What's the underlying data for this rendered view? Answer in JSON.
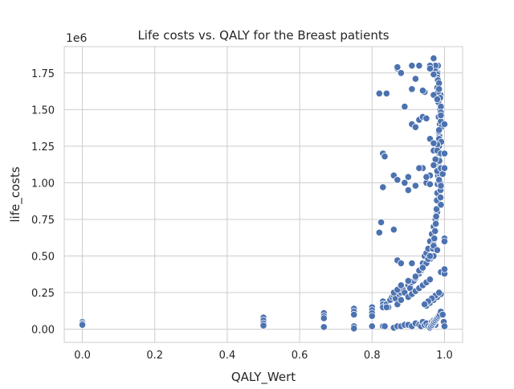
{
  "chart_data": {
    "type": "scatter",
    "title": "Life costs vs. QALY for the Breast patients",
    "xlabel": "QALY_Wert",
    "ylabel": "life_costs",
    "y_offset_label": "1e6",
    "xlim": [
      -0.05,
      1.05
    ],
    "ylim": [
      -0.09,
      1.93
    ],
    "xticks": [
      0.0,
      0.2,
      0.4,
      0.6,
      0.8,
      1.0
    ],
    "xtick_labels": [
      "0.0",
      "0.2",
      "0.4",
      "0.6",
      "0.8",
      "1.0"
    ],
    "yticks": [
      0.0,
      0.25,
      0.5,
      0.75,
      1.0,
      1.25,
      1.5,
      1.75
    ],
    "ytick_labels": [
      "0.00",
      "0.25",
      "0.50",
      "0.75",
      "1.00",
      "1.25",
      "1.50",
      "1.75"
    ],
    "grid": true,
    "marker_color": "#4c72b0",
    "marker_edge": "#ffffff",
    "series": [
      {
        "x": [
          0.0,
          0.0,
          0.0,
          0.5,
          0.5,
          0.5,
          0.5,
          0.667,
          0.667,
          0.667,
          0.667,
          0.75,
          0.75,
          0.75,
          0.75,
          0.75,
          0.8,
          0.8,
          0.8,
          0.8,
          0.8,
          0.83,
          0.83,
          0.83,
          0.83,
          0.835,
          0.84,
          0.845,
          0.85,
          0.855,
          0.86,
          0.865,
          0.87,
          0.875,
          0.88,
          0.885,
          0.89,
          0.895,
          0.9,
          0.905,
          0.91,
          0.915,
          0.92,
          0.925,
          0.93,
          0.935,
          0.94,
          0.945,
          0.95,
          0.955,
          0.96,
          0.965,
          0.97,
          0.975,
          0.98,
          0.985,
          0.99,
          0.86,
          0.87,
          0.88,
          0.89,
          0.9,
          0.91,
          0.92,
          0.93,
          0.935,
          0.94,
          0.945,
          0.95,
          0.955,
          0.96,
          0.965,
          0.97,
          0.975,
          0.962,
          0.965,
          0.968,
          0.97,
          0.972,
          0.974,
          0.976,
          0.977,
          0.978,
          0.979,
          0.98,
          0.981,
          0.982,
          0.983,
          0.984,
          0.985,
          0.986,
          0.987,
          0.988,
          0.989,
          0.96,
          0.963,
          0.966,
          0.969,
          0.972,
          0.975,
          0.978,
          0.981,
          0.984,
          0.987,
          0.99,
          0.98,
          0.98,
          0.981,
          0.982,
          0.982,
          0.983,
          0.984,
          0.984,
          0.985,
          0.986,
          0.986,
          0.987,
          0.988,
          0.988,
          0.989,
          0.989,
          0.99,
          0.99,
          0.991,
          0.991,
          0.97,
          0.975,
          0.975,
          0.98,
          0.98,
          0.982,
          0.985,
          0.985,
          0.988,
          0.99,
          0.99,
          0.99,
          0.985,
          0.98,
          0.97,
          0.975,
          0.98,
          0.985,
          0.99,
          0.97,
          0.95,
          0.96,
          0.97,
          0.98,
          0.99,
          0.975,
          0.965,
          0.955,
          0.945,
          0.985,
          0.84,
          0.87,
          0.88,
          0.9,
          0.91,
          0.92,
          0.93,
          0.94,
          0.95,
          0.96,
          0.86,
          0.87,
          0.88,
          0.9,
          0.92,
          0.93,
          0.94,
          0.95,
          0.96,
          0.97,
          0.82,
          0.825,
          0.83,
          0.86,
          0.87,
          0.88,
          0.91,
          0.93,
          0.94,
          0.955,
          0.96,
          0.97,
          0.82,
          0.83,
          0.835,
          0.86,
          0.87,
          0.9,
          0.92,
          0.94,
          0.95,
          0.96,
          0.87,
          0.89,
          0.91,
          0.92,
          0.93,
          0.94,
          0.95,
          0.96,
          0.97,
          0.98,
          0.87,
          0.91,
          0.93,
          0.945,
          0.96,
          0.97,
          0.99,
          0.99,
          0.995,
          1.0,
          0.88,
          0.91,
          0.92,
          0.94,
          0.96,
          0.97,
          0.98,
          0.84,
          0.89,
          0.9,
          0.93,
          0.95,
          0.96,
          0.98,
          0.99,
          1.0,
          1.0,
          1.0,
          1.0,
          1.0,
          0.995,
          0.998,
          1.0,
          1.0
        ],
        "y": [
          0.05,
          0.04,
          0.03,
          0.08,
          0.06,
          0.04,
          0.025,
          0.11,
          0.09,
          0.075,
          0.015,
          0.14,
          0.12,
          0.1,
          0.02,
          0.005,
          0.15,
          0.13,
          0.11,
          0.09,
          0.02,
          0.19,
          0.17,
          0.15,
          0.02,
          0.02,
          0.17,
          0.15,
          0.2,
          0.22,
          0.23,
          0.21,
          0.02,
          0.24,
          0.25,
          0.27,
          0.25,
          0.03,
          0.3,
          0.28,
          0.32,
          0.33,
          0.35,
          0.37,
          0.38,
          0.4,
          0.45,
          0.5,
          0.52,
          0.55,
          0.6,
          0.65,
          0.7,
          0.75,
          0.8,
          0.9,
          1.0,
          0.01,
          0.02,
          0.02,
          0.03,
          0.03,
          0.02,
          0.04,
          0.03,
          0.02,
          0.05,
          0.03,
          0.04,
          0.02,
          0.01,
          0.05,
          0.06,
          0.03,
          0.48,
          0.5,
          0.55,
          0.58,
          0.62,
          0.67,
          0.72,
          0.77,
          0.82,
          0.88,
          0.93,
          0.99,
          1.05,
          1.12,
          1.18,
          1.25,
          1.32,
          1.4,
          1.5,
          1.6,
          0.01,
          0.02,
          0.03,
          0.04,
          0.05,
          0.06,
          0.07,
          0.08,
          0.09,
          0.1,
          0.12,
          1.65,
          1.7,
          1.75,
          1.8,
          1.62,
          1.55,
          1.45,
          1.35,
          1.3,
          1.2,
          1.15,
          1.1,
          1.05,
          1.0,
          0.95,
          0.9,
          0.85,
          1.42,
          1.38,
          1.28,
          1.85,
          1.8,
          1.76,
          1.74,
          1.72,
          1.7,
          1.68,
          1.64,
          1.58,
          1.52,
          1.48,
          1.46,
          1.36,
          1.26,
          1.22,
          1.16,
          1.08,
          1.02,
          0.98,
          1.12,
          0.16,
          0.18,
          0.2,
          0.22,
          0.24,
          0.23,
          0.21,
          0.19,
          0.17,
          0.25,
          0.15,
          0.17,
          0.2,
          0.22,
          0.24,
          0.26,
          0.28,
          0.3,
          0.32,
          0.34,
          0.25,
          0.27,
          0.3,
          0.33,
          0.36,
          0.4,
          0.42,
          0.45,
          0.48,
          0.5,
          0.66,
          0.73,
          0.97,
          0.68,
          0.47,
          0.45,
          0.45,
          0.4,
          0.42,
          0.48,
          0.5,
          0.57,
          1.61,
          1.2,
          1.18,
          1.05,
          1.02,
          0.95,
          0.98,
          1.1,
          1.0,
          1.05,
          1.78,
          1.52,
          1.4,
          1.38,
          1.43,
          1.45,
          1.44,
          1.3,
          1.27,
          1.22,
          1.79,
          1.64,
          1.8,
          1.62,
          1.8,
          1.74,
          1.2,
          1.1,
          1.06,
          1.4,
          1.75,
          1.8,
          1.71,
          1.63,
          1.78,
          1.6,
          1.57,
          1.61,
          1.0,
          1.04,
          1.1,
          1.04,
          0.99,
          0.54,
          0.39,
          0.38,
          1.2,
          1.1,
          0.62,
          0.41,
          0.1,
          0.05,
          0.02,
          0.6
        ]
      }
    ]
  }
}
